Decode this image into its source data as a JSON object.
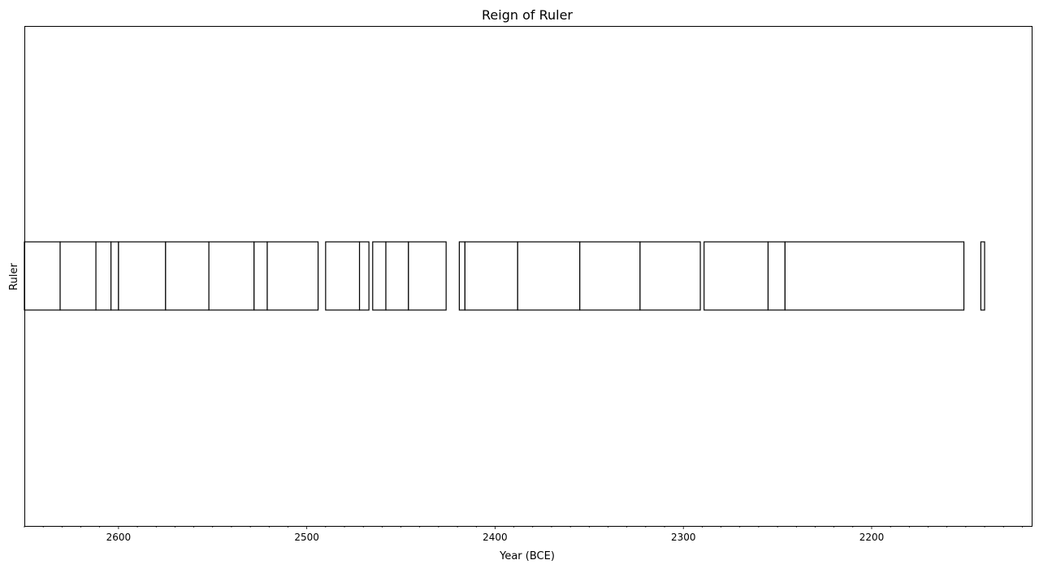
{
  "chart_data": {
    "type": "bar",
    "orientation": "horizontal-timeline",
    "title": "Reign of Ruler",
    "xlabel": "Year (BCE)",
    "ylabel": "Ruler",
    "x_axis_reversed": true,
    "xlim": [
      2650,
      2115
    ],
    "x_ticks": [
      "2600",
      "2500",
      "2400",
      "2300",
      "2200"
    ],
    "x_tick_values": [
      2600,
      2500,
      2400,
      2300,
      2200
    ],
    "x_minor_tick_step": 10,
    "grid": false,
    "legend": "none",
    "bar_fill": "#ffffff",
    "bar_edge": "#000000",
    "reigns": [
      {
        "start": 2650,
        "end": 2631
      },
      {
        "start": 2631,
        "end": 2612
      },
      {
        "start": 2612,
        "end": 2604
      },
      {
        "start": 2604,
        "end": 2600
      },
      {
        "start": 2600,
        "end": 2575
      },
      {
        "start": 2575,
        "end": 2552
      },
      {
        "start": 2552,
        "end": 2528
      },
      {
        "start": 2528,
        "end": 2521
      },
      {
        "start": 2521,
        "end": 2494
      },
      {
        "start": 2490,
        "end": 2472
      },
      {
        "start": 2472,
        "end": 2467
      },
      {
        "start": 2465,
        "end": 2458
      },
      {
        "start": 2458,
        "end": 2446
      },
      {
        "start": 2446,
        "end": 2426
      },
      {
        "start": 2419,
        "end": 2416
      },
      {
        "start": 2416,
        "end": 2388
      },
      {
        "start": 2388,
        "end": 2355
      },
      {
        "start": 2355,
        "end": 2323
      },
      {
        "start": 2323,
        "end": 2291
      },
      {
        "start": 2289,
        "end": 2255
      },
      {
        "start": 2255,
        "end": 2246
      },
      {
        "start": 2246,
        "end": 2151
      },
      {
        "start": 2142,
        "end": 2140
      }
    ]
  }
}
